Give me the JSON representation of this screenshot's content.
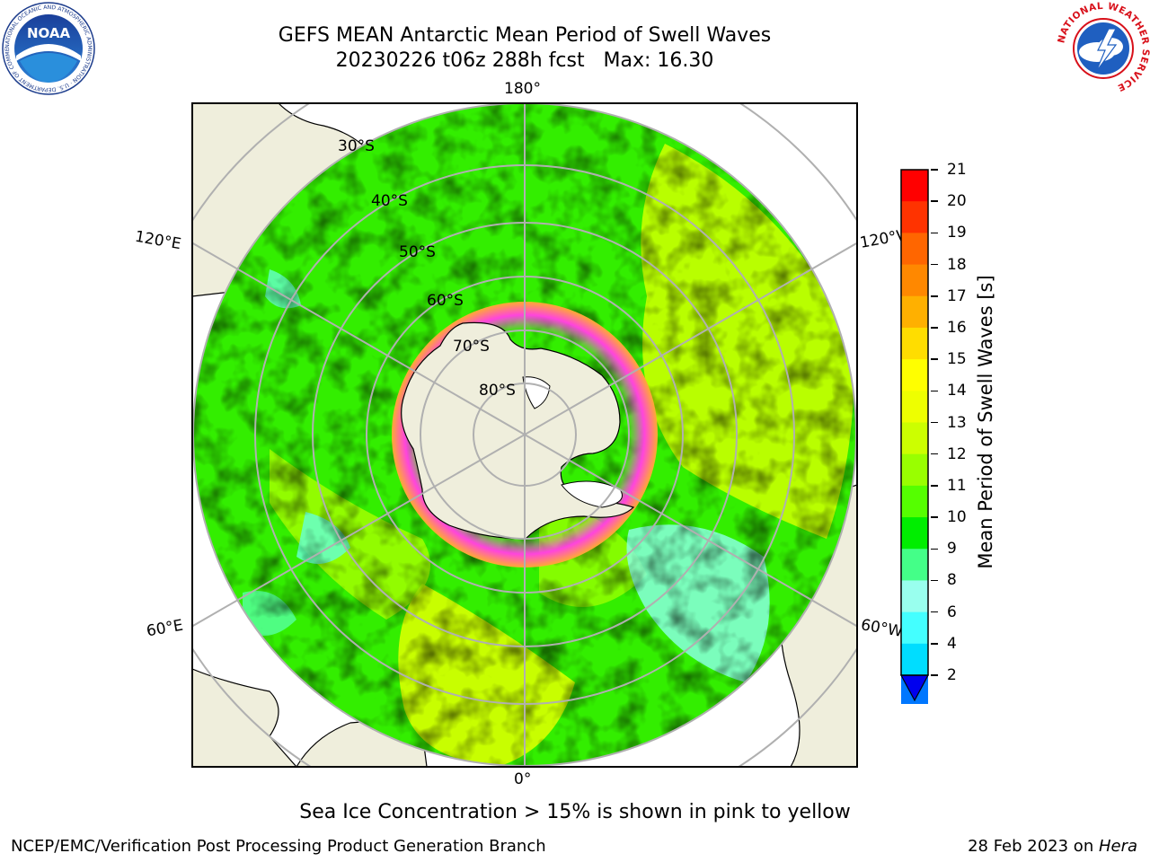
{
  "title": {
    "line1": "GEFS MEAN Antarctic Mean Period of Swell Waves",
    "line2": "20230226 t06z 288h fcst   Max: 16.30"
  },
  "logos": {
    "left": {
      "name": "NOAA",
      "ring_text": "NATIONAL OCEANIC AND ATMOSPHERIC ADMINISTRATION · U.S. DEPARTMENT OF COMMERCE"
    },
    "right": {
      "name": "NATIONAL WEATHER SERVICE"
    }
  },
  "map": {
    "projection": "south-polar-stereographic",
    "longitude_labels": {
      "top": "180°",
      "bottom": "0°",
      "left_upper": "120°E",
      "left_lower": "60°E",
      "right_upper": "120°W",
      "right_lower": "60°W"
    },
    "latitude_labels": [
      "30°S",
      "40°S",
      "50°S",
      "60°S",
      "70°S",
      "80°S"
    ],
    "colors": {
      "land": "#efeedc",
      "ice_edge": "#ff44dd",
      "grid": "#b0b0b0"
    }
  },
  "colorbar": {
    "label": "Mean Period of Swell Waves [s]",
    "ticks": [
      "21",
      "20",
      "19",
      "18",
      "17",
      "16",
      "15",
      "14",
      "13",
      "12",
      "11",
      "10",
      "9",
      "8",
      "6",
      "4",
      "2"
    ],
    "colors_top_to_bottom": [
      "#ff0000",
      "#ff3300",
      "#ff6600",
      "#ff8800",
      "#ffb000",
      "#ffdd00",
      "#ffff00",
      "#eeff00",
      "#ccff00",
      "#99ff00",
      "#55ff00",
      "#00ee00",
      "#44ff88",
      "#99ffee",
      "#44ffff",
      "#00ddff",
      "#0077ff"
    ],
    "extend_below_color": "#0000ee"
  },
  "notes": {
    "sea_ice": "Sea Ice Concentration > 15% is shown in pink to yellow",
    "footer_left": "NCEP/EMC/Verification Post Processing Product Generation Branch",
    "footer_date": "28 Feb 2023 on ",
    "footer_host": "Hera"
  }
}
